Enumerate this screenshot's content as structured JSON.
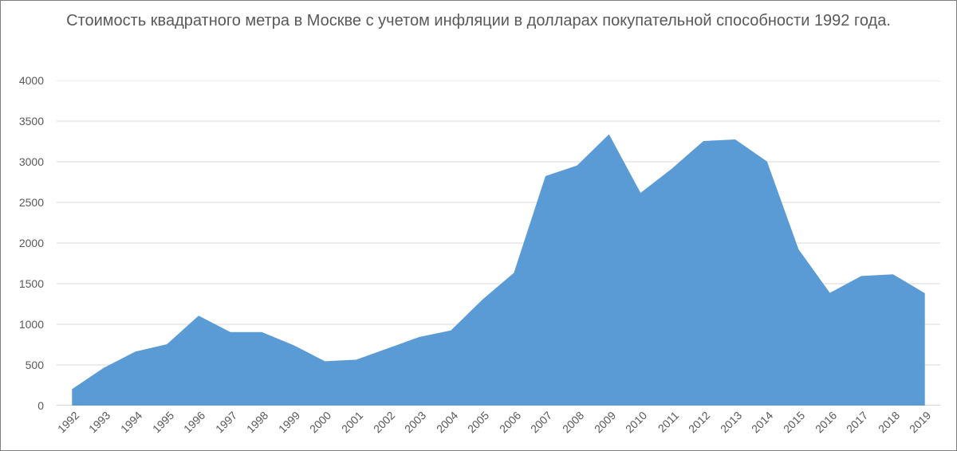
{
  "chart": {
    "type": "area",
    "title": "Стоимость квадратного метра в Москве с учетом инфляции в долларах покупательной способности 1992 года.",
    "title_fontsize": 20,
    "title_color": "#595959",
    "background_color": "#ffffff",
    "border_color": "#7f7f7f",
    "series": {
      "fill_color": "#5b9bd5",
      "line_color": "#5b9bd5",
      "categories": [
        "1992",
        "1993",
        "1994",
        "1995",
        "1996",
        "1997",
        "1998",
        "1999",
        "2000",
        "2001",
        "2002",
        "2003",
        "2004",
        "2005",
        "2006",
        "2007",
        "2008",
        "2009",
        "2010",
        "2011",
        "2012",
        "2013",
        "2014",
        "2015",
        "2016",
        "2017",
        "2018",
        "2019"
      ],
      "values": [
        200,
        460,
        660,
        750,
        1100,
        900,
        900,
        740,
        540,
        560,
        700,
        840,
        920,
        1300,
        1630,
        2820,
        2950,
        3330,
        2610,
        2910,
        3250,
        3270,
        3000,
        1920,
        1380,
        1590,
        1610,
        1380
      ]
    },
    "y_axis": {
      "min": 0,
      "max": 4000,
      "step": 500,
      "ticks": [
        0,
        500,
        1000,
        1500,
        2000,
        2500,
        3000,
        3500,
        4000
      ],
      "label_fontsize": 14,
      "label_color": "#595959",
      "grid_color": "#d9d9d9",
      "baseline_color": "#bfbfbf"
    },
    "x_axis": {
      "label_fontsize": 14,
      "label_color": "#595959",
      "label_rotation_deg": -45,
      "tick_color": "#bfbfbf"
    }
  }
}
